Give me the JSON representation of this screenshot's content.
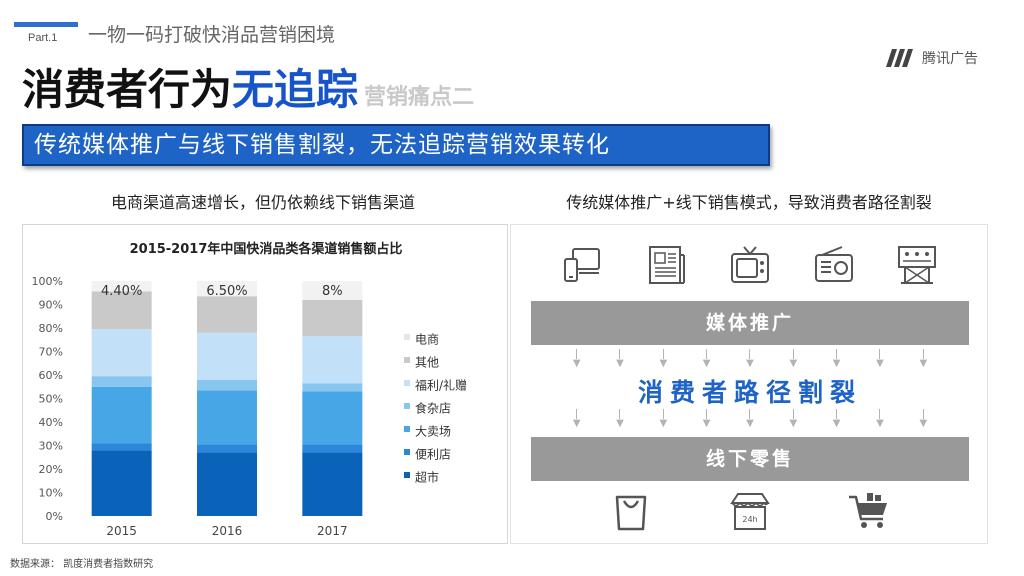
{
  "header": {
    "part_label": "Part.1",
    "section_title": "一物一码打破快消品营销困境",
    "logo_text": "腾讯广告"
  },
  "title": {
    "part1": "消费者行为",
    "part2": "无追踪",
    "part3": "营销痛点二"
  },
  "banner": "传统媒体推广与线下销售割裂，无法追踪营销效果转化",
  "left": {
    "heading": "电商渠道高速增长，但仍依赖线下销售渠道"
  },
  "right": {
    "heading": "传统媒体推广+线下销售模式，导致消费者路径割裂",
    "media_label": "媒体推广",
    "middle_label": "消费者路径割裂",
    "retail_label": "线下零售",
    "top_icons": [
      "tablet-phone-icon",
      "newspaper-icon",
      "tv-icon",
      "radio-icon",
      "billboard-icon"
    ],
    "bottom_icons": [
      "shopping-bag-icon",
      "store-24h-icon",
      "shopping-cart-icon"
    ]
  },
  "chart_data": {
    "type": "bar",
    "stacked": true,
    "title": "2015-2017年中国快消品类各渠道销售额占比",
    "categories": [
      "2015",
      "2016",
      "2017"
    ],
    "ylim": [
      0,
      100
    ],
    "yticks": [
      "0%",
      "10%",
      "20%",
      "30%",
      "40%",
      "50%",
      "60%",
      "70%",
      "80%",
      "90%",
      "100%"
    ],
    "series": [
      {
        "name": "超市",
        "color": "#0a63b8",
        "values": [
          28,
          27,
          27
        ]
      },
      {
        "name": "便利店",
        "color": "#2c86d9",
        "values": [
          3,
          3.5,
          3.5
        ]
      },
      {
        "name": "大卖场",
        "color": "#47a7e6",
        "values": [
          24,
          23,
          22.5
        ]
      },
      {
        "name": "食杂店",
        "color": "#88c6ef",
        "values": [
          4.5,
          4.5,
          3.5
        ]
      },
      {
        "name": "福利/礼赠",
        "color": "#c3e0f9",
        "values": [
          20,
          20,
          20
        ]
      },
      {
        "name": "其他",
        "color": "#c9c9c9",
        "values": [
          16.1,
          15.5,
          15.5
        ]
      },
      {
        "name": "电商",
        "color": "#f2f2f2",
        "values": [
          4.4,
          6.5,
          8
        ]
      }
    ],
    "data_labels": [
      "4.40%",
      "6.50%",
      "8%"
    ],
    "legend_position": "right"
  },
  "footer": "数据来源：  凯度消费者指数研究"
}
